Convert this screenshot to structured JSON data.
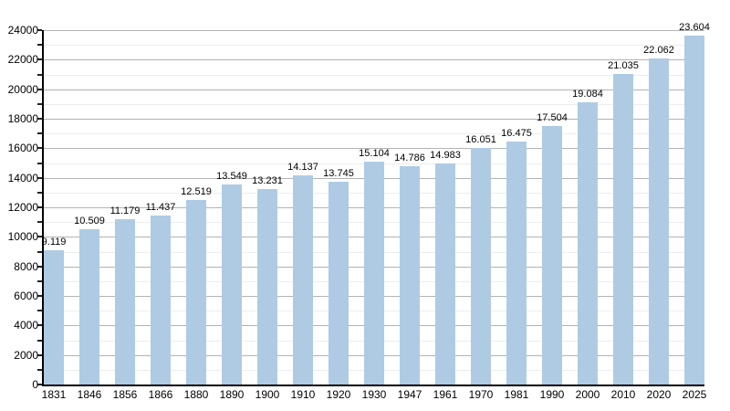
{
  "chart_data": {
    "type": "bar",
    "title": "",
    "xlabel": "",
    "ylabel": "",
    "categories": [
      "1831",
      "1846",
      "1856",
      "1866",
      "1880",
      "1890",
      "1900",
      "1910",
      "1920",
      "1930",
      "1947",
      "1961",
      "1970",
      "1981",
      "1990",
      "2000",
      "2010",
      "2020",
      "2025"
    ],
    "values": [
      9119,
      10509,
      11179,
      11437,
      12519,
      13549,
      13231,
      14137,
      13745,
      15104,
      14786,
      14983,
      16051,
      16475,
      17504,
      19084,
      21035,
      22062,
      23604
    ],
    "value_labels": [
      "9.119",
      "10.509",
      "11.179",
      "11.437",
      "12.519",
      "13.549",
      "13.231",
      "14.137",
      "13.745",
      "15.104",
      "14.786",
      "14.983",
      "16.051",
      "16.475",
      "17.504",
      "19.084",
      "21.035",
      "22.062",
      "23.604"
    ],
    "y_tick_labels": [
      "0",
      "2000",
      "4000",
      "6000",
      "8000",
      "10000",
      "12000",
      "14000",
      "16000",
      "18000",
      "20000",
      "22000",
      "24000"
    ],
    "ylim": [
      0,
      24000
    ],
    "y_major_step": 2000,
    "y_minor_step": 1000,
    "grid": "on",
    "legend": "none",
    "colors": {
      "bar_fill": "#aecbe3",
      "grid_major": "#b3b3b3",
      "grid_minor": "#ededed",
      "axis": "#000000",
      "text": "#000000",
      "background": "#ffffff"
    }
  }
}
